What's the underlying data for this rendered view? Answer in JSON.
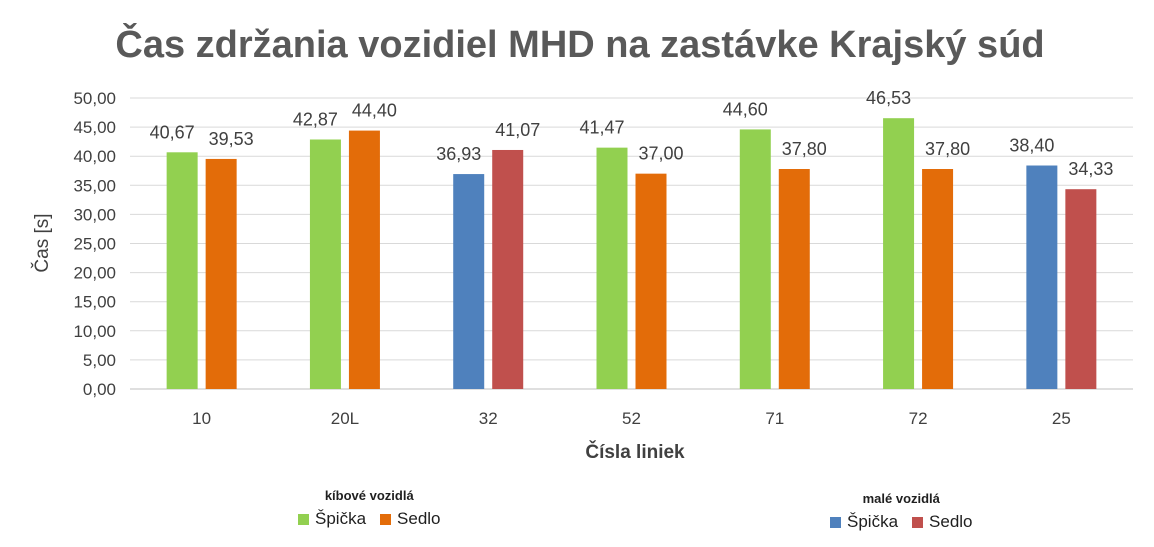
{
  "chart_data": {
    "type": "bar",
    "title": "Čas zdržania vozidiel MHD na zastávke Krajský súd",
    "xlabel": "Čísla liniek",
    "ylabel": "Čas [s]",
    "ylim": [
      0,
      50
    ],
    "ytick_step": 5,
    "ytick_labels": [
      "0,00",
      "5,00",
      "10,00",
      "15,00",
      "20,00",
      "25,00",
      "30,00",
      "35,00",
      "40,00",
      "45,00",
      "50,00"
    ],
    "grid": true,
    "categories": [
      "10",
      "20L",
      "32",
      "52",
      "71",
      "72",
      "25"
    ],
    "groups": [
      "kíbové vozidlá",
      "kíbové vozidlá",
      "malé vozidlá",
      "kíbové vozidlá",
      "kíbové vozidlá",
      "kíbové vozidlá",
      "malé vozidlá"
    ],
    "series": [
      {
        "name": "Špička",
        "values": [
          40.67,
          42.87,
          36.93,
          41.47,
          44.6,
          46.53,
          38.4
        ],
        "labels": [
          "40,67",
          "42,87",
          "36,93",
          "41,47",
          "44,60",
          "46,53",
          "38,40"
        ]
      },
      {
        "name": "Sedlo",
        "values": [
          39.53,
          44.4,
          41.07,
          37.0,
          37.8,
          37.8,
          34.33
        ],
        "labels": [
          "39,53",
          "44,40",
          "41,07",
          "37,00",
          "37,80",
          "37,80",
          "34,33"
        ]
      }
    ],
    "colors": {
      "kíbové vozidlá": {
        "Špička": "#92d050",
        "Sedlo": "#e36c09"
      },
      "malé vozidlá": {
        "Špička": "#4f81bd",
        "Sedlo": "#c0504d"
      }
    },
    "legends": [
      {
        "title": "kíbové vozidlá",
        "placement": "bottom-left",
        "items": [
          {
            "label": "Špička",
            "color": "#92d050"
          },
          {
            "label": "Sedlo",
            "color": "#e36c09"
          }
        ]
      },
      {
        "title": "malé vozidlá",
        "placement": "bottom-right",
        "items": [
          {
            "label": "Špička",
            "color": "#4f81bd"
          },
          {
            "label": "Sedlo",
            "color": "#c0504d"
          }
        ]
      }
    ]
  }
}
